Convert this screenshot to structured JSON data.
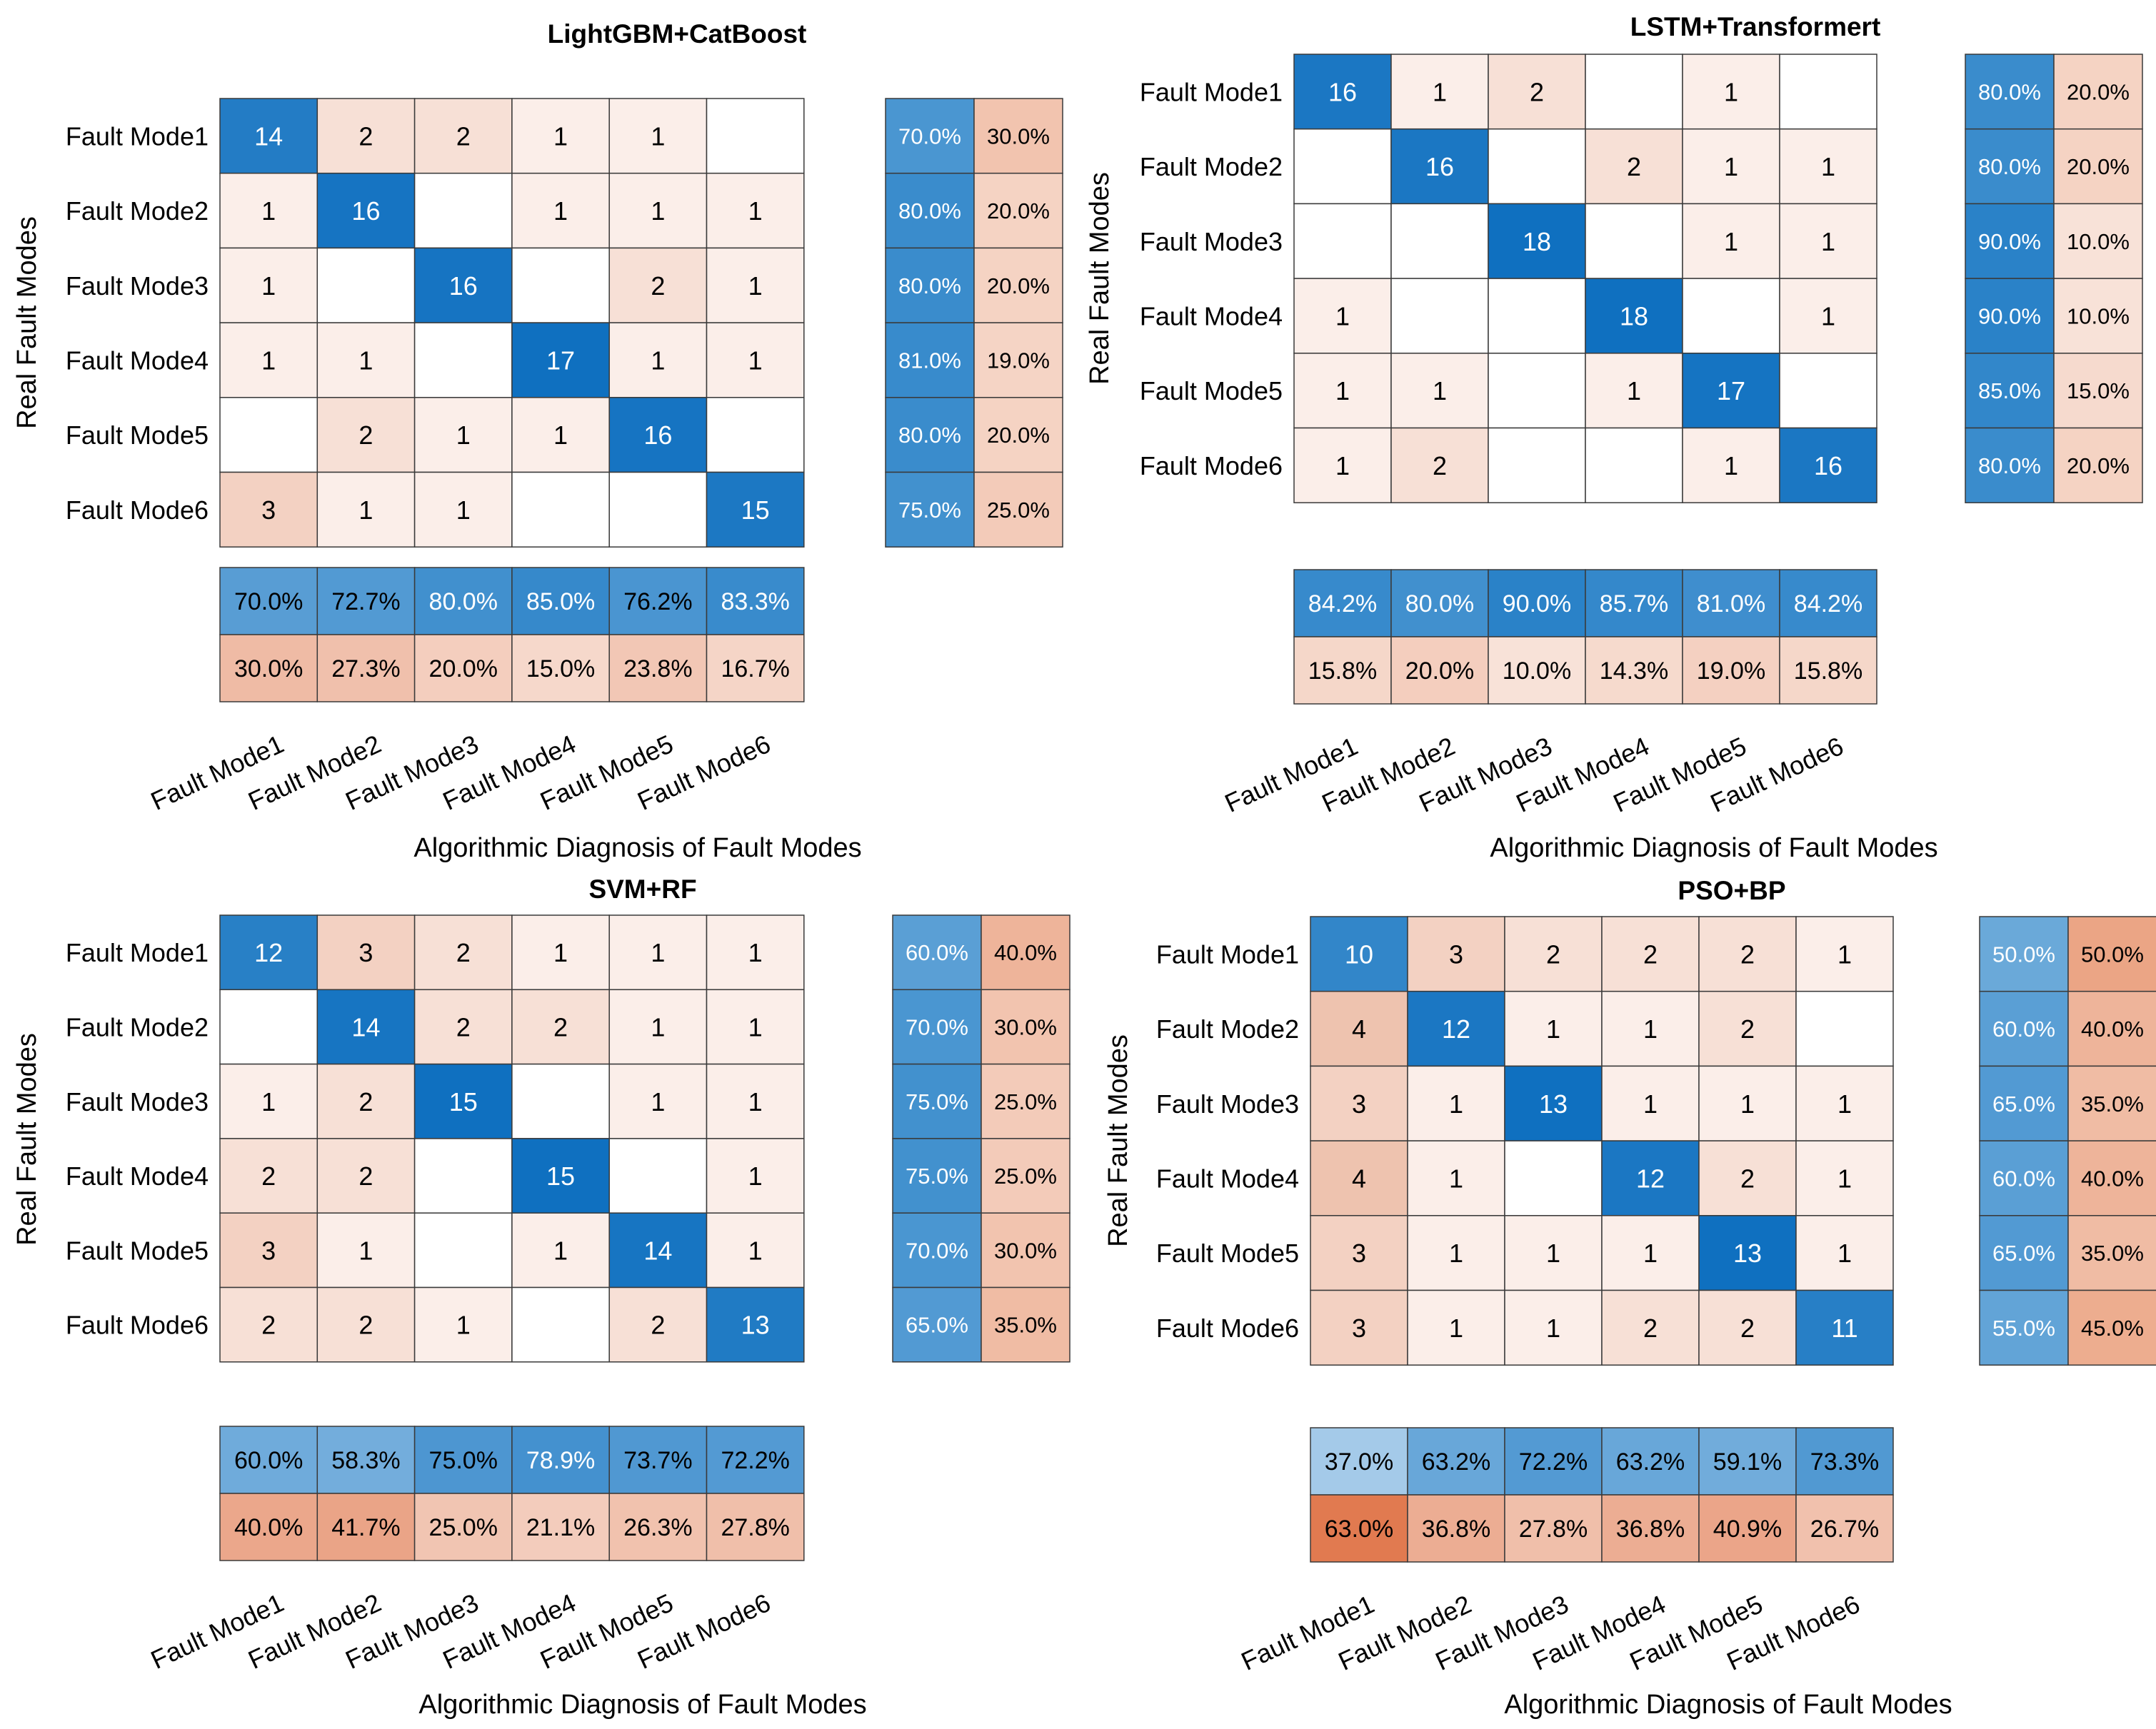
{
  "figure": {
    "ylabel": "Real Fault Modes",
    "xlabel": "Algorithmic Diagnosis of Fault Modes"
  },
  "colors": {
    "blue_strong": "#0f70c0",
    "blue_light": "#a9cdea",
    "red_strong": "#e17a50",
    "red_light": "#fbeee9",
    "grid": "#3a3a3a",
    "text_dark": "#000000",
    "text_light": "#ffffff"
  },
  "chart_data": [
    {
      "type": "heatmap",
      "title": "LightGBM+CatBoost",
      "xlabel": "Algorithmic Diagnosis of Fault Modes",
      "ylabel": "Real Fault Modes",
      "row_labels": [
        "Fault Mode1",
        "Fault Mode2",
        "Fault Mode3",
        "Fault Mode4",
        "Fault Mode5",
        "Fault Mode6"
      ],
      "col_labels": [
        "Fault Mode1",
        "Fault Mode2",
        "Fault Mode3",
        "Fault Mode4",
        "Fault Mode5",
        "Fault Mode6"
      ],
      "matrix": [
        [
          14,
          2,
          2,
          1,
          1,
          0
        ],
        [
          1,
          16,
          0,
          1,
          1,
          1
        ],
        [
          1,
          0,
          16,
          0,
          2,
          1
        ],
        [
          1,
          1,
          0,
          17,
          1,
          1
        ],
        [
          0,
          2,
          1,
          1,
          16,
          0
        ],
        [
          3,
          1,
          1,
          0,
          0,
          15
        ]
      ],
      "row_summary": [
        [
          "70.0%",
          "30.0%"
        ],
        [
          "80.0%",
          "20.0%"
        ],
        [
          "80.0%",
          "20.0%"
        ],
        [
          "81.0%",
          "19.0%"
        ],
        [
          "80.0%",
          "20.0%"
        ],
        [
          "75.0%",
          "25.0%"
        ]
      ],
      "col_summary": [
        [
          "70.0%",
          "72.7%",
          "80.0%",
          "85.0%",
          "76.2%",
          "83.3%"
        ],
        [
          "30.0%",
          "27.3%",
          "20.0%",
          "15.0%",
          "23.8%",
          "16.7%"
        ]
      ]
    },
    {
      "type": "heatmap",
      "title": "LSTM+Transformert",
      "xlabel": "Algorithmic Diagnosis of Fault Modes",
      "ylabel": "Real Fault Modes",
      "row_labels": [
        "Fault Mode1",
        "Fault Mode2",
        "Fault Mode3",
        "Fault Mode4",
        "Fault Mode5",
        "Fault Mode6"
      ],
      "col_labels": [
        "Fault Mode1",
        "Fault Mode2",
        "Fault Mode3",
        "Fault Mode4",
        "Fault Mode5",
        "Fault Mode6"
      ],
      "matrix": [
        [
          16,
          1,
          2,
          0,
          1,
          0
        ],
        [
          0,
          16,
          0,
          2,
          1,
          1
        ],
        [
          0,
          0,
          18,
          0,
          1,
          1
        ],
        [
          1,
          0,
          0,
          18,
          0,
          1
        ],
        [
          1,
          1,
          0,
          1,
          17,
          0
        ],
        [
          1,
          2,
          0,
          0,
          1,
          16
        ]
      ],
      "row_summary": [
        [
          "80.0%",
          "20.0%"
        ],
        [
          "80.0%",
          "20.0%"
        ],
        [
          "90.0%",
          "10.0%"
        ],
        [
          "90.0%",
          "10.0%"
        ],
        [
          "85.0%",
          "15.0%"
        ],
        [
          "80.0%",
          "20.0%"
        ]
      ],
      "col_summary": [
        [
          "84.2%",
          "80.0%",
          "90.0%",
          "85.7%",
          "81.0%",
          "84.2%"
        ],
        [
          "15.8%",
          "20.0%",
          "10.0%",
          "14.3%",
          "19.0%",
          "15.8%"
        ]
      ]
    },
    {
      "type": "heatmap",
      "title": "SVM+RF",
      "xlabel": "Algorithmic Diagnosis of Fault Modes",
      "ylabel": "Real Fault Modes",
      "row_labels": [
        "Fault Mode1",
        "Fault Mode2",
        "Fault Mode3",
        "Fault Mode4",
        "Fault Mode5",
        "Fault Mode6"
      ],
      "col_labels": [
        "Fault Mode1",
        "Fault Mode2",
        "Fault Mode3",
        "Fault Mode4",
        "Fault Mode5",
        "Fault Mode6"
      ],
      "matrix": [
        [
          12,
          3,
          2,
          1,
          1,
          1
        ],
        [
          0,
          14,
          2,
          2,
          1,
          1
        ],
        [
          1,
          2,
          15,
          0,
          1,
          1
        ],
        [
          2,
          2,
          0,
          15,
          0,
          1
        ],
        [
          3,
          1,
          0,
          1,
          14,
          1
        ],
        [
          2,
          2,
          1,
          0,
          2,
          13
        ]
      ],
      "row_summary": [
        [
          "60.0%",
          "40.0%"
        ],
        [
          "70.0%",
          "30.0%"
        ],
        [
          "75.0%",
          "25.0%"
        ],
        [
          "75.0%",
          "25.0%"
        ],
        [
          "70.0%",
          "30.0%"
        ],
        [
          "65.0%",
          "35.0%"
        ]
      ],
      "col_summary": [
        [
          "60.0%",
          "58.3%",
          "75.0%",
          "78.9%",
          "73.7%",
          "72.2%"
        ],
        [
          "40.0%",
          "41.7%",
          "25.0%",
          "21.1%",
          "26.3%",
          "27.8%"
        ]
      ]
    },
    {
      "type": "heatmap",
      "title": "PSO+BP",
      "xlabel": "Algorithmic Diagnosis of Fault Modes",
      "ylabel": "Real Fault Modes",
      "row_labels": [
        "Fault Mode1",
        "Fault Mode2",
        "Fault Mode3",
        "Fault Mode4",
        "Fault Mode5",
        "Fault Mode6"
      ],
      "col_labels": [
        "Fault Mode1",
        "Fault Mode2",
        "Fault Mode3",
        "Fault Mode4",
        "Fault Mode5",
        "Fault Mode6"
      ],
      "matrix": [
        [
          10,
          3,
          2,
          2,
          2,
          1
        ],
        [
          4,
          12,
          1,
          1,
          2,
          0
        ],
        [
          3,
          1,
          13,
          1,
          1,
          1
        ],
        [
          4,
          1,
          0,
          12,
          2,
          1
        ],
        [
          3,
          1,
          1,
          1,
          13,
          1
        ],
        [
          3,
          1,
          1,
          2,
          2,
          11
        ]
      ],
      "row_summary": [
        [
          "50.0%",
          "50.0%"
        ],
        [
          "60.0%",
          "40.0%"
        ],
        [
          "65.0%",
          "35.0%"
        ],
        [
          "60.0%",
          "40.0%"
        ],
        [
          "65.0%",
          "35.0%"
        ],
        [
          "55.0%",
          "45.0%"
        ]
      ],
      "col_summary": [
        [
          "37.0%",
          "63.2%",
          "72.2%",
          "63.2%",
          "59.1%",
          "73.3%"
        ],
        [
          "63.0%",
          "36.8%",
          "27.8%",
          "36.8%",
          "40.9%",
          "26.7%"
        ]
      ]
    }
  ]
}
